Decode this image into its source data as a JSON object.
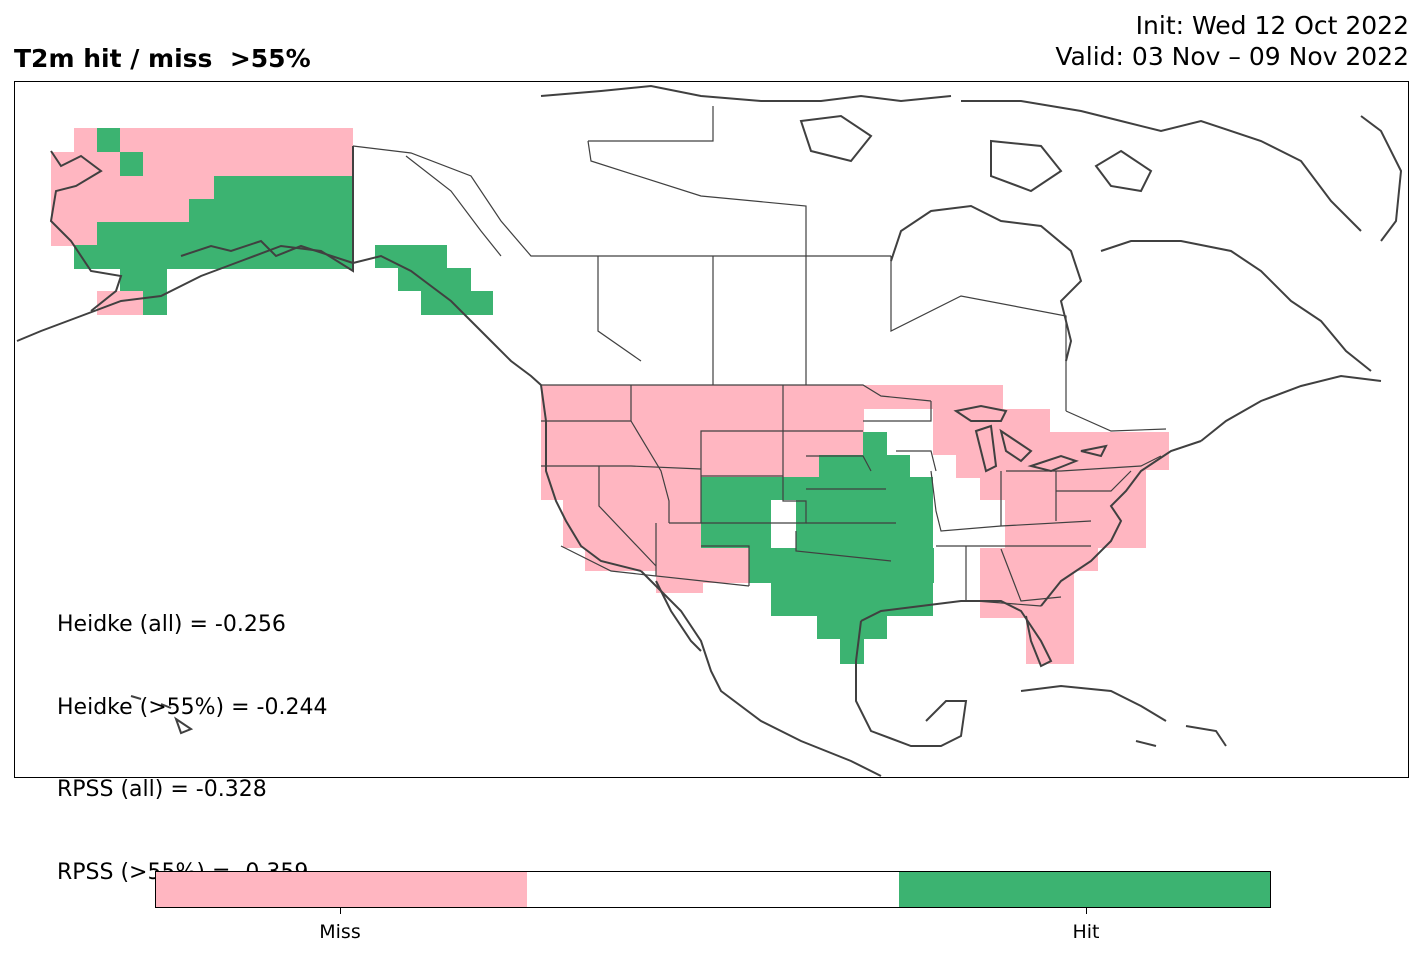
{
  "title": {
    "left": "T2m hit / miss  >55%",
    "init": "Init: Wed 12 Oct 2022",
    "valid": "Valid: 03 Nov – 09 Nov 2022"
  },
  "stats": {
    "heidke_all": "Heidke (all) = -0.256",
    "heidke_55": "Heidke (>55%) = -0.244",
    "rpss_all": "RPSS (all) = -0.328",
    "rpss_55": "RPSS (>55%) = -0.359"
  },
  "legend": {
    "categories": [
      "Miss",
      "",
      "Hit"
    ],
    "tick_labels": [
      "Miss",
      "Hit"
    ],
    "colors": {
      "miss": "#ffb6c1",
      "neutral": "#ffffff",
      "hit": "#3cb371"
    }
  },
  "colors": {
    "coastline": "#404040",
    "border": "#404040",
    "frame": "#000000"
  }
}
